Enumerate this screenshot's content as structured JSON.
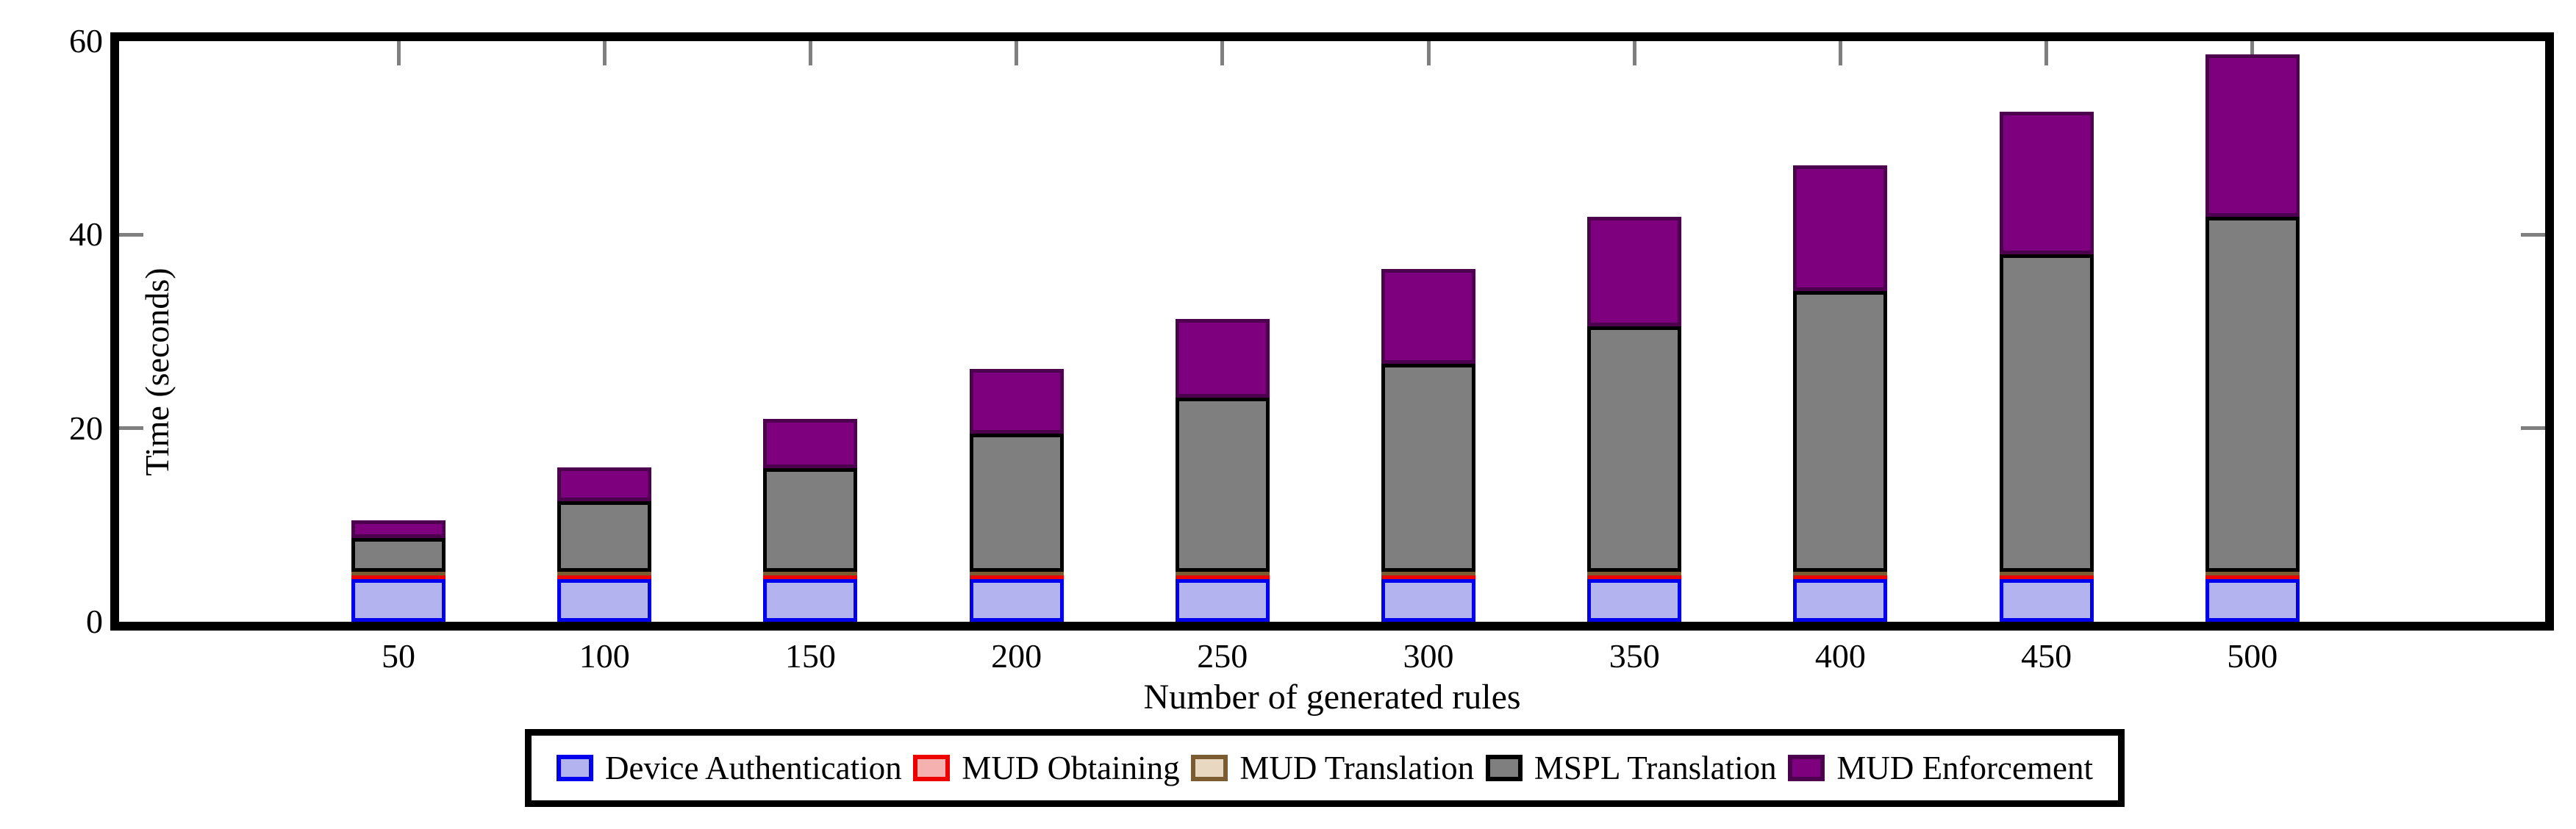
{
  "figure": {
    "background": "#ffffff",
    "axis_color": "#000000",
    "tick_color": "#7f7f7f"
  },
  "chart_data": {
    "type": "bar",
    "stacked": true,
    "title": "",
    "xlabel": "Number of generated rules",
    "ylabel": "Time (seconds)",
    "categories": [
      "50",
      "100",
      "150",
      "200",
      "250",
      "300",
      "350",
      "400",
      "450",
      "500"
    ],
    "series": [
      {
        "name": "Device Authentication",
        "fill": "#b3b3f0",
        "border": "#0000ee",
        "values": [
          4.4,
          4.4,
          4.4,
          4.4,
          4.4,
          4.4,
          4.4,
          4.4,
          4.4,
          4.4
        ]
      },
      {
        "name": "MUD Obtaining",
        "fill": "#f5b0b0",
        "border": "#ee0000",
        "values": [
          0.15,
          0.15,
          0.15,
          0.15,
          0.15,
          0.15,
          0.15,
          0.15,
          0.15,
          0.15
        ]
      },
      {
        "name": "MUD Translation",
        "fill": "#e8d8c2",
        "border": "#7a5c30",
        "values": [
          0.15,
          0.15,
          0.15,
          0.15,
          0.15,
          0.15,
          0.15,
          0.15,
          0.15,
          0.15
        ]
      },
      {
        "name": "MSPL Translation",
        "fill": "#7f7f7f",
        "border": "#000000",
        "values": [
          3.5,
          7.3,
          10.7,
          14.3,
          18.0,
          21.5,
          25.4,
          29.0,
          32.8,
          36.7
        ]
      },
      {
        "name": "MUD Enforcement",
        "fill": "#7f007f",
        "border": "#4d004d",
        "values": [
          1.8,
          3.5,
          5.1,
          6.7,
          8.1,
          9.8,
          11.3,
          13.0,
          14.7,
          16.8
        ]
      }
    ],
    "totals": [
      10.0,
      15.5,
      20.5,
      25.7,
      30.8,
      36.0,
      41.4,
      46.7,
      52.2,
      58.2
    ],
    "ylim": [
      0,
      60
    ],
    "yticks": [
      0,
      20,
      40,
      60
    ],
    "grid": false,
    "legend_position": "bottom"
  }
}
